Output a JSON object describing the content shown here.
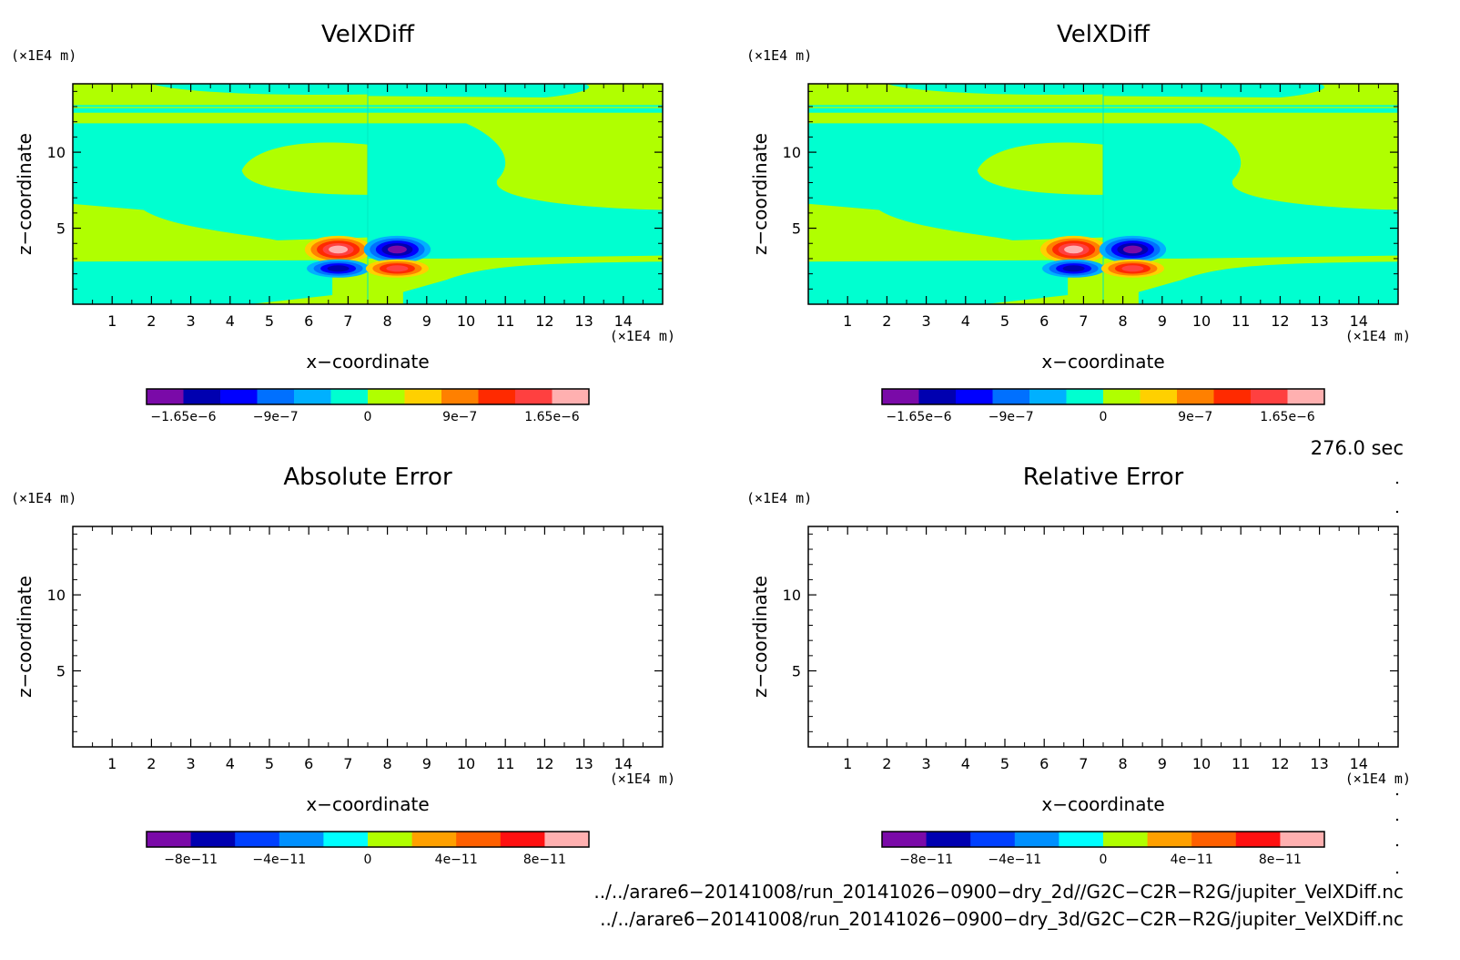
{
  "chart_data": [
    {
      "type": "heatmap",
      "title": "VelXDiff",
      "xlabel": "x−coordinate",
      "ylabel": "z−coordinate",
      "x_unit": "(×1E4 m)",
      "z_unit": "(×1E4 m)",
      "x_ticks": [
        "1",
        "2",
        "3",
        "4",
        "5",
        "6",
        "7",
        "8",
        "9",
        "10",
        "11",
        "12",
        "13",
        "14"
      ],
      "z_ticks": [
        "5",
        "10"
      ],
      "xlim": [
        0,
        15
      ],
      "zlim": [
        0,
        14.5
      ],
      "colorbar": {
        "colors": [
          "#7a0aa8",
          "#0000b0",
          "#0000ff",
          "#0070ff",
          "#00b0ff",
          "#00ffd0",
          "#b0ff00",
          "#ffd000",
          "#ff8000",
          "#ff2a00",
          "#ff4040",
          "#ffb0b0"
        ],
        "labels": [
          "−1.65e−6",
          "−9e−7",
          "0",
          "9e−7",
          "1.65e−6"
        ]
      }
    },
    {
      "type": "heatmap",
      "title": "VelXDiff",
      "xlabel": "x−coordinate",
      "ylabel": "z−coordinate",
      "x_unit": "(×1E4 m)",
      "z_unit": "(×1E4 m)",
      "x_ticks": [
        "1",
        "2",
        "3",
        "4",
        "5",
        "6",
        "7",
        "8",
        "9",
        "10",
        "11",
        "12",
        "13",
        "14"
      ],
      "z_ticks": [
        "5",
        "10"
      ],
      "xlim": [
        0,
        15
      ],
      "zlim": [
        0,
        14.5
      ],
      "colorbar": {
        "colors": [
          "#7a0aa8",
          "#0000b0",
          "#0000ff",
          "#0070ff",
          "#00b0ff",
          "#00ffd0",
          "#b0ff00",
          "#ffd000",
          "#ff8000",
          "#ff2a00",
          "#ff4040",
          "#ffb0b0"
        ],
        "labels": [
          "−1.65e−6",
          "−9e−7",
          "0",
          "9e−7",
          "1.65e−6"
        ]
      }
    },
    {
      "type": "heatmap",
      "title": "Absolute Error",
      "xlabel": "x−coordinate",
      "ylabel": "z−coordinate",
      "x_unit": "(×1E4 m)",
      "z_unit": "(×1E4 m)",
      "x_ticks": [
        "1",
        "2",
        "3",
        "4",
        "5",
        "6",
        "7",
        "8",
        "9",
        "10",
        "11",
        "12",
        "13",
        "14"
      ],
      "z_ticks": [
        "5",
        "10"
      ],
      "xlim": [
        0,
        15
      ],
      "zlim": [
        0,
        14.5
      ],
      "colorbar": {
        "colors": [
          "#7a0aa8",
          "#0000b0",
          "#0040ff",
          "#0090ff",
          "#00ffff",
          "#b0ff00",
          "#ffa000",
          "#ff6000",
          "#ff1010",
          "#ffb0b0"
        ],
        "labels": [
          "−8e−11",
          "−4e−11",
          "0",
          "4e−11",
          "8e−11"
        ]
      }
    },
    {
      "type": "heatmap",
      "title": "Relative Error",
      "xlabel": "x−coordinate",
      "ylabel": "z−coordinate",
      "x_unit": "(×1E4 m)",
      "z_unit": "(×1E4 m)",
      "x_ticks": [
        "1",
        "2",
        "3",
        "4",
        "5",
        "6",
        "7",
        "8",
        "9",
        "10",
        "11",
        "12",
        "13",
        "14"
      ],
      "z_ticks": [
        "5",
        "10"
      ],
      "xlim": [
        0,
        15
      ],
      "zlim": [
        0,
        14.5
      ],
      "colorbar": {
        "colors": [
          "#7a0aa8",
          "#0000b0",
          "#0040ff",
          "#0090ff",
          "#00ffff",
          "#b0ff00",
          "#ffa000",
          "#ff6000",
          "#ff1010",
          "#ffb0b0"
        ],
        "labels": [
          "−8e−11",
          "−4e−11",
          "0",
          "4e−11",
          "8e−11"
        ]
      }
    }
  ],
  "time_label": "276.0 sec",
  "files": [
    "../../arare6−20141008/run_20141026−0900−dry_2d//G2C−C2R−R2G/jupiter_VelXDiff.nc",
    "../../arare6−20141008/run_20141026−0900−dry_3d/G2C−C2R−R2G/jupiter_VelXDiff.nc"
  ]
}
